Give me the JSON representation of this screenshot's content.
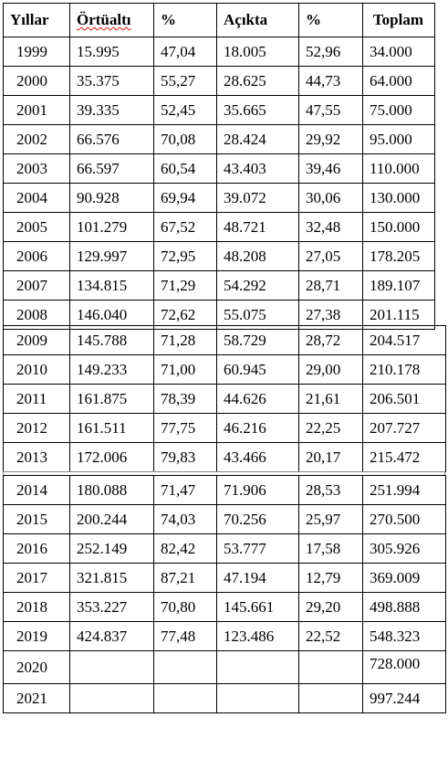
{
  "headers": [
    "Yıllar",
    "Örtüaltı",
    "%",
    "Açıkta",
    "%",
    "Toplam"
  ],
  "section1": [
    [
      "1999",
      "15.995",
      "47,04",
      "18.005",
      "52,96",
      "34.000"
    ],
    [
      "2000",
      "35.375",
      "55,27",
      "28.625",
      "44,73",
      "64.000"
    ],
    [
      "2001",
      "39.335",
      "52,45",
      "35.665",
      "47,55",
      "75.000"
    ],
    [
      "2002",
      "66.576",
      "70,08",
      "28.424",
      "29,92",
      "95.000"
    ],
    [
      "2003",
      "66.597",
      "60,54",
      "43.403",
      "39,46",
      "110.000"
    ],
    [
      "2004",
      "90.928",
      "69,94",
      "39.072",
      "30,06",
      "130.000"
    ],
    [
      "2005",
      "101.279",
      "67,52",
      "48.721",
      "32,48",
      "150.000"
    ],
    [
      "2006",
      "129.997",
      "72,95",
      "48.208",
      "27,05",
      "178.205"
    ],
    [
      "2007",
      "134.815",
      "71,29",
      "54.292",
      "28,71",
      "189.107"
    ],
    [
      "2008",
      "146.040",
      "72,62",
      "55.075",
      "27,38",
      "201.115"
    ]
  ],
  "section2": [
    [
      "2009",
      "145.788",
      "71,28",
      "58.729",
      "28,72",
      "204.517"
    ],
    [
      "2010",
      "149.233",
      "71,00",
      "60.945",
      "29,00",
      "210.178"
    ],
    [
      "2011",
      "161.875",
      "78,39",
      "44.626",
      "21,61",
      "206.501"
    ],
    [
      "2012",
      "161.511",
      "77,75",
      "46.216",
      "22,25",
      "207.727"
    ],
    [
      "2013",
      "172.006",
      "79,83",
      "43.466",
      "20,17",
      "215.472"
    ]
  ],
  "section3": [
    [
      "2014",
      "180.088",
      "71,47",
      "71.906",
      "28,53",
      "251.994"
    ],
    [
      "2015",
      "200.244",
      "74,03",
      "70.256",
      "25,97",
      "270.500"
    ],
    [
      "2016",
      "252.149",
      "82,42",
      "53.777",
      "17,58",
      "305.926"
    ],
    [
      "2017",
      "321.815",
      "87,21",
      "47.194",
      "12,79",
      "369.009"
    ],
    [
      "2018",
      "353.227",
      "70,80",
      "145.661",
      "29,20",
      "498.888"
    ],
    [
      "2019",
      "424.837",
      "77,48",
      "123.486",
      "22,52",
      "548.323"
    ]
  ],
  "row2020": {
    "year": "2020",
    "total": "728.000"
  },
  "row2021": {
    "year": "2021",
    "total": "997.244"
  }
}
